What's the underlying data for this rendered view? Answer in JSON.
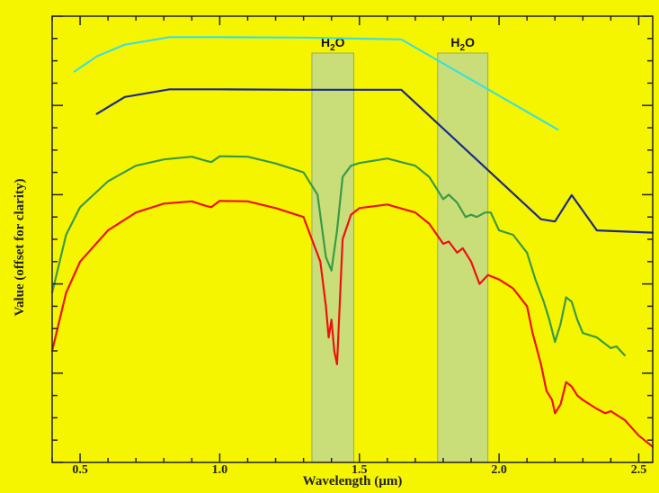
{
  "chart_data": {
    "type": "line",
    "title": "",
    "xlabel": "Wavelength (µm)",
    "ylabel": "Value (offset for clarity)",
    "xlim": [
      0.4,
      2.55
    ],
    "ylim": [
      0,
      100
    ],
    "x_ticks": [
      0.5,
      1.0,
      1.5,
      2.0,
      2.5
    ],
    "x_tick_labels": [
      "0.5",
      "1.0",
      "1.5",
      "2.0",
      "2.5"
    ],
    "y_tick_labels_shown": false,
    "grid": false,
    "legend": "none",
    "background_color": "#f5f500",
    "band_color": "#b9d6a0",
    "shaded_bands": [
      {
        "x_start": 1.33,
        "x_end": 1.48,
        "label_main": "H",
        "label_sub": "2",
        "label_end": "O"
      },
      {
        "x_start": 1.78,
        "x_end": 1.96,
        "label_main": "H",
        "label_sub": "2",
        "label_end": "O"
      }
    ],
    "series": [
      {
        "color": "#3ee0d8",
        "x": [
          0.48,
          0.56,
          0.66,
          0.82,
          1.0,
          1.3,
          1.65,
          2.21
        ],
        "values": [
          87.6,
          91.0,
          93.6,
          95.3,
          95.3,
          95.2,
          94.8,
          74.6
        ]
      },
      {
        "color": "#1e2a8a",
        "x": [
          0.56,
          0.66,
          0.82,
          1.0,
          1.3,
          1.65,
          2.15,
          2.2,
          2.26,
          2.35,
          2.55
        ],
        "values": [
          78.1,
          81.9,
          83.6,
          83.6,
          83.5,
          83.5,
          54.5,
          54.0,
          59.9,
          52.0,
          51.5
        ]
      },
      {
        "color": "#3a9a48",
        "x": [
          0.4,
          0.45,
          0.5,
          0.6,
          0.7,
          0.8,
          0.9,
          0.95,
          0.97,
          1.0,
          1.1,
          1.2,
          1.3,
          1.35,
          1.38,
          1.4,
          1.42,
          1.44,
          1.47,
          1.5,
          1.6,
          1.7,
          1.75,
          1.8,
          1.82,
          1.85,
          1.88,
          1.9,
          1.92,
          1.95,
          1.97,
          2.0,
          2.05,
          2.1,
          2.13,
          2.16,
          2.18,
          2.2,
          2.22,
          2.24,
          2.26,
          2.28,
          2.3,
          2.35,
          2.4,
          2.42,
          2.45
        ],
        "values": [
          38.0,
          51.0,
          57.2,
          63.0,
          66.5,
          67.9,
          68.5,
          67.6,
          67.3,
          68.6,
          68.5,
          67.0,
          65.0,
          60.0,
          46.0,
          43.0,
          52.0,
          64.0,
          66.5,
          67.1,
          68.1,
          66.5,
          64.0,
          59.0,
          60.0,
          58.2,
          55.0,
          55.5,
          55.0,
          56.0,
          56.0,
          52.0,
          51.0,
          47.0,
          41.0,
          36.0,
          32.0,
          27.0,
          31.0,
          37.0,
          36.0,
          32.0,
          29.0,
          28.0,
          25.6,
          26.0,
          24.0
        ]
      },
      {
        "color": "#ee1111",
        "x": [
          0.4,
          0.45,
          0.5,
          0.6,
          0.7,
          0.8,
          0.9,
          0.95,
          0.97,
          1.0,
          1.1,
          1.2,
          1.3,
          1.33,
          1.36,
          1.38,
          1.39,
          1.4,
          1.41,
          1.42,
          1.44,
          1.47,
          1.5,
          1.6,
          1.7,
          1.75,
          1.8,
          1.82,
          1.85,
          1.87,
          1.9,
          1.93,
          1.96,
          2.0,
          2.05,
          2.1,
          2.12,
          2.15,
          2.17,
          2.19,
          2.2,
          2.22,
          2.24,
          2.26,
          2.28,
          2.3,
          2.35,
          2.38,
          2.4,
          2.45,
          2.5,
          2.55
        ],
        "values": [
          25.0,
          38.0,
          45.0,
          52.0,
          56.0,
          58.0,
          58.5,
          57.5,
          57.2,
          58.6,
          58.5,
          57.0,
          55.0,
          50.0,
          45.0,
          35.0,
          28.0,
          32.0,
          25.0,
          22.0,
          50.0,
          55.5,
          57.0,
          57.8,
          56.0,
          53.5,
          49.0,
          49.5,
          47.0,
          48.0,
          45.0,
          40.0,
          42.0,
          41.0,
          39.0,
          35.0,
          29.0,
          22.0,
          16.0,
          14.0,
          11.0,
          13.0,
          18.0,
          17.0,
          15.0,
          14.0,
          12.0,
          11.0,
          11.5,
          9.5,
          6.0,
          3.5
        ]
      }
    ]
  }
}
